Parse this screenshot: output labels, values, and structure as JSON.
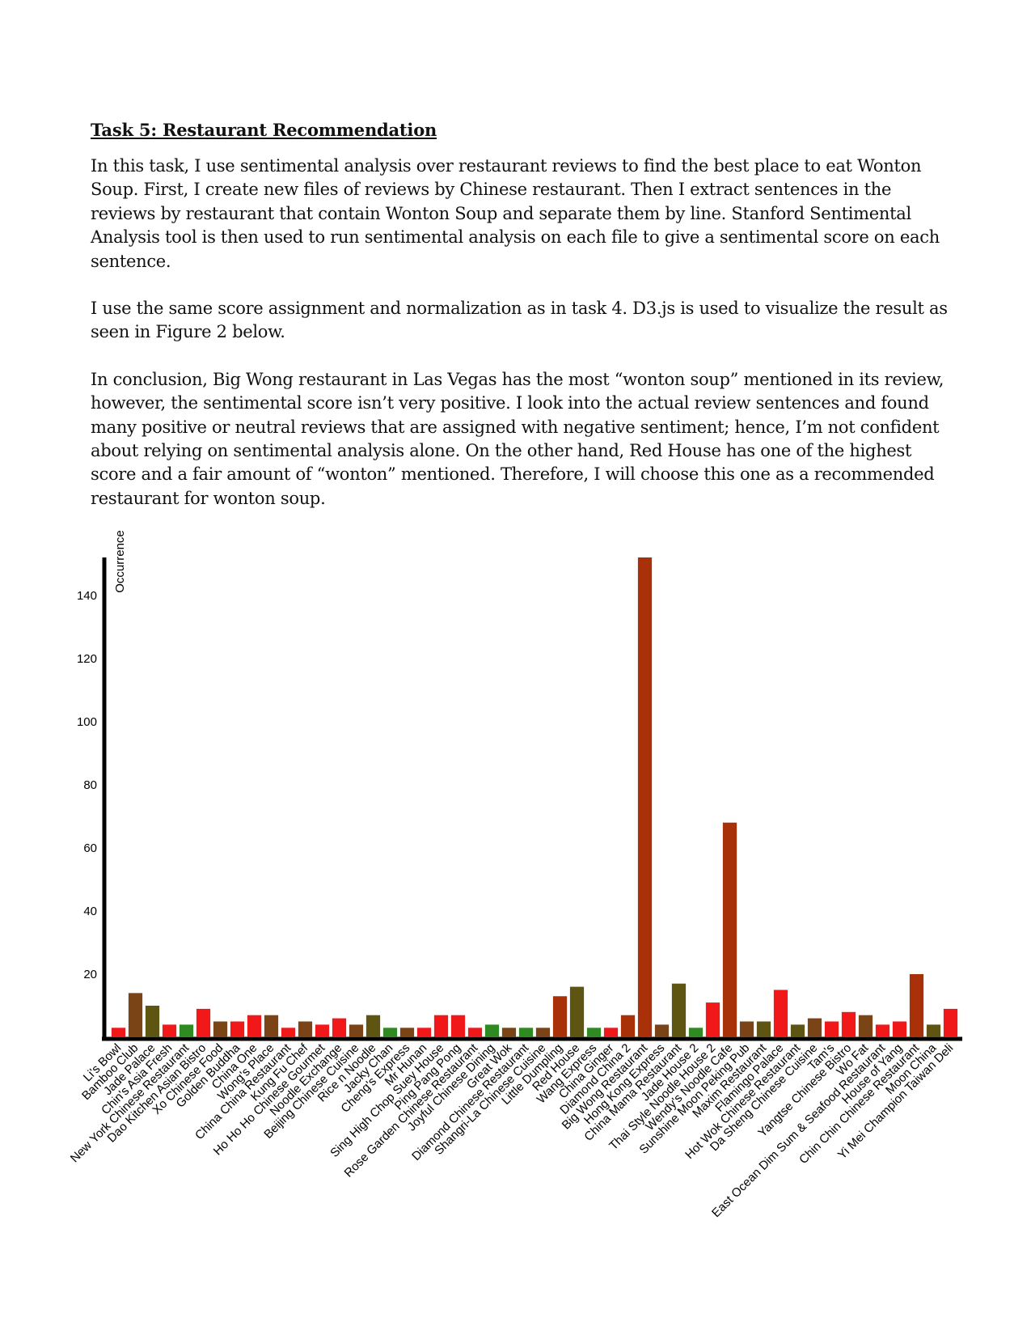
{
  "document": {
    "heading": "Task 5: Restaurant Recommendation",
    "paragraphs": [
      "In this task, I use sentimental analysis over restaurant reviews to find the best place to eat Wonton Soup. First, I create new files of reviews by Chinese restaurant. Then I extract sentences in the reviews by restaurant that contain Wonton Soup and separate them by line.  Stanford Sentimental Analysis tool is then used to run sentimental analysis on each file to give a sentimental score on each sentence.",
      "I use the same score assignment and normalization as in task 4. D3.js is used to visualize the result as seen in Figure 2 below.",
      "In conclusion, Big Wong restaurant in Las Vegas has the most “wonton soup” mentioned in its review, however, the sentimental score isn’t very positive. I look into the actual review sentences and found many positive or neutral reviews that are assigned with negative sentiment; hence, I’m not confident about relying on sentimental analysis alone. On the other hand, Red House has one of the highest score and a fair amount of “wonton” mentioned. Therefore, I will choose this one as a recommended restaurant for wonton soup."
    ]
  },
  "colors": {
    "red": "#f01818",
    "dark_red": "#a8310a",
    "brown": "#7a4417",
    "olive": "#5e5512",
    "green": "#2f8a22",
    "axis": "#000000"
  },
  "chart_data": {
    "type": "bar",
    "ylabel": "Occurrence",
    "xlabel": "",
    "ylim": [
      0,
      152
    ],
    "yticks": [
      20,
      40,
      60,
      80,
      100,
      120,
      140
    ],
    "grid": false,
    "categories": [
      "Li's Bowl",
      "Bamboo Club",
      "Jade Palace",
      "Chin's Asia Fresh",
      "New York Chinese Restaurant",
      "Dao Kitchen Asian Bistro",
      "Xo Chinese Food",
      "Golden Buddha",
      "China One",
      "Wong's Place",
      "China China Restaurant",
      "Kung Fu Chef",
      "Ho Ho Ho Chinese Gourmet",
      "Noodle Exchange",
      "Beijing Chinese Cuisine",
      "Rice n Noodle",
      "Jacky Chan",
      "Cheng's Express",
      "Mr Hunan",
      "Sing High Chop Suey House",
      "Ping Pang Pong",
      "Rose Garden Chinese Restaurant",
      "Joyful Chinese Dining",
      "Great Wok",
      "Diamond Chinese Restaurant",
      "Shangri-La Chinese Cuisine",
      "Little Dumpling",
      "Red House",
      "Wang Express",
      "China Ginger",
      "Diamond China 2",
      "Big Wong Restaurant",
      "Hong Kong Express",
      "China Mama Restaurant",
      "Jade House 2",
      "Thai Style Noodle House 2",
      "Wendy's Noodle Cafe",
      "Sunshine Moon Peking Pub",
      "Maxim Restaurant",
      "Flamingo Palace",
      "Hot Wok Chinese Restaurant",
      "Da Sheng Chinese Cuisine",
      "Tam's",
      "Yangtse Chinese Bistro",
      "Wo Fat",
      "East Ocean Dim Sum & Seafood Restaurant",
      "House of Yang",
      "Chin Chin Chinese Restaurant",
      "Moon China",
      "Yi Mei Champion Taiwan Deli"
    ],
    "values": [
      3,
      14,
      10,
      4,
      4,
      9,
      5,
      5,
      7,
      7,
      3,
      5,
      4,
      6,
      4,
      7,
      3,
      3,
      3,
      7,
      7,
      3,
      4,
      3,
      3,
      3,
      13,
      16,
      3,
      3,
      7,
      152,
      4,
      17,
      3,
      11,
      68,
      5,
      5,
      15,
      4,
      6,
      5,
      8,
      7,
      4,
      5,
      20,
      4,
      9
    ],
    "bar_colors": [
      "red",
      "brown",
      "olive",
      "red",
      "green",
      "red",
      "brown",
      "red",
      "red",
      "brown",
      "red",
      "brown",
      "red",
      "red",
      "brown",
      "olive",
      "green",
      "brown",
      "red",
      "red",
      "red",
      "red",
      "green",
      "brown",
      "green",
      "brown",
      "dark_red",
      "olive",
      "green",
      "red",
      "dark_red",
      "dark_red",
      "brown",
      "olive",
      "green",
      "red",
      "dark_red",
      "brown",
      "olive",
      "red",
      "olive",
      "brown",
      "red",
      "red",
      "brown",
      "red",
      "red",
      "dark_red",
      "olive",
      "red"
    ]
  }
}
